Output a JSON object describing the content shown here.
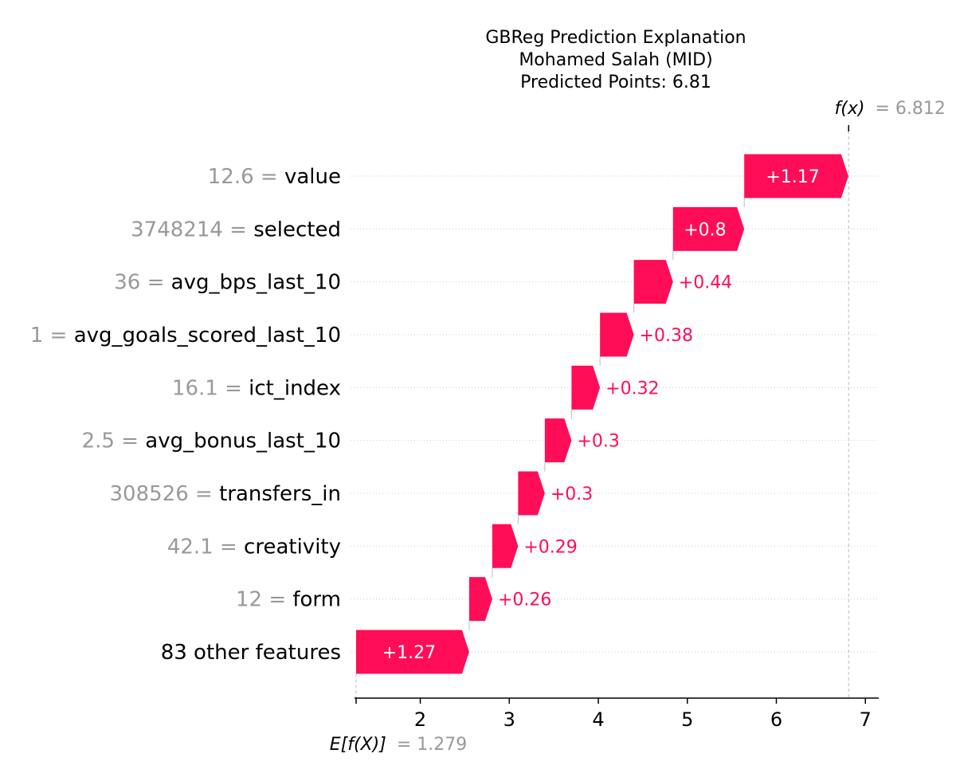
{
  "chart_data": {
    "type": "waterfall",
    "title_lines": [
      "GBReg Prediction Explanation",
      "Mohamed Salah (MID)",
      "Predicted Points: 6.81"
    ],
    "base_value": 1.279,
    "base_label": "E[f(X)]",
    "base_value_text": "= 1.279",
    "output_value": 6.812,
    "output_label": "f(x)",
    "output_value_text": "= 6.812",
    "xlim": [
      1.279,
      7.15
    ],
    "xticks": [
      2,
      3,
      4,
      5,
      6,
      7
    ],
    "xtick_labels": [
      "2",
      "3",
      "4",
      "5",
      "6",
      "7"
    ],
    "positive_color": "#ff0d57",
    "features": [
      {
        "value_text": "12.6 = ",
        "name": "value",
        "contribution": 1.17,
        "label": "+1.17"
      },
      {
        "value_text": "3748214 = ",
        "name": "selected",
        "contribution": 0.8,
        "label": "+0.8"
      },
      {
        "value_text": "36 = ",
        "name": "avg_bps_last_10",
        "contribution": 0.44,
        "label": "+0.44"
      },
      {
        "value_text": "1 = ",
        "name": "avg_goals_scored_last_10",
        "contribution": 0.38,
        "label": "+0.38"
      },
      {
        "value_text": "16.1 = ",
        "name": "ict_index",
        "contribution": 0.32,
        "label": "+0.32"
      },
      {
        "value_text": "2.5 = ",
        "name": "avg_bonus_last_10",
        "contribution": 0.3,
        "label": "+0.3"
      },
      {
        "value_text": "308526 = ",
        "name": "transfers_in",
        "contribution": 0.3,
        "label": "+0.3"
      },
      {
        "value_text": "42.1 = ",
        "name": "creativity",
        "contribution": 0.29,
        "label": "+0.29"
      },
      {
        "value_text": "12 = ",
        "name": "form",
        "contribution": 0.26,
        "label": "+0.26"
      },
      {
        "value_text": "",
        "name": "83 other features",
        "contribution": 1.27,
        "label": "+1.27"
      }
    ]
  }
}
